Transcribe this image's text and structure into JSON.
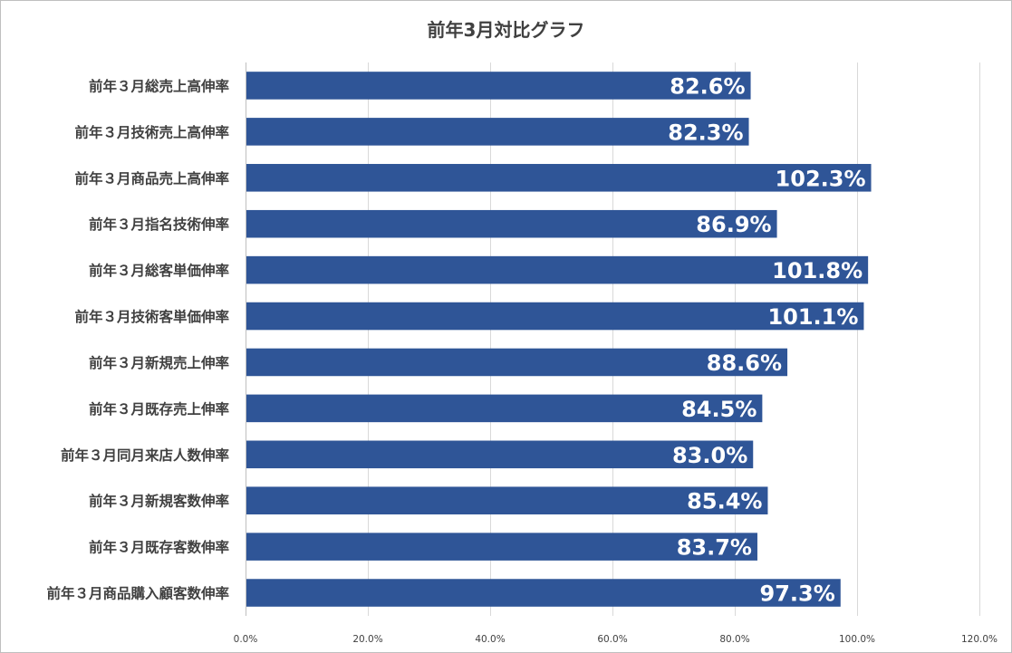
{
  "chart_data": {
    "type": "bar",
    "orientation": "horizontal",
    "title": "前年3月対比グラフ",
    "categories": [
      "前年３月総売上高伸率",
      "前年３月技術売上高伸率",
      "前年３月商品売上高伸率",
      "前年３月指名技術伸率",
      "前年３月総客単価伸率",
      "前年３月技術客単価伸率",
      "前年３月新規売上伸率",
      "前年３月既存売上伸率",
      "前年３月同月来店人数伸率",
      "前年３月新規客数伸率",
      "前年３月既存客数伸率",
      "前年３月商品購入顧客数伸率"
    ],
    "values": [
      82.6,
      82.3,
      102.3,
      86.9,
      101.8,
      101.1,
      88.6,
      84.5,
      83.0,
      85.4,
      83.7,
      97.3
    ],
    "data_labels": [
      "82.6%",
      "82.3%",
      "102.3%",
      "86.9%",
      "101.8%",
      "101.1%",
      "88.6%",
      "84.5%",
      "83.0%",
      "85.4%",
      "83.7%",
      "97.3%"
    ],
    "xlim": [
      0,
      120
    ],
    "x_ticks": [
      0,
      20,
      40,
      60,
      80,
      100,
      120
    ],
    "x_tick_labels": [
      "0.0%",
      "20.0%",
      "40.0%",
      "60.0%",
      "80.0%",
      "100.0%",
      "120.0%"
    ],
    "grid": "vertical",
    "legend": "none",
    "bar_color": "#2f5597"
  }
}
